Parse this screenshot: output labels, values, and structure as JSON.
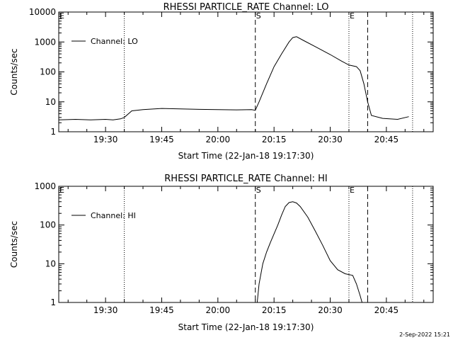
{
  "footer": {
    "timestamp": "2-Sep-2022 15:21"
  },
  "chart_data": [
    {
      "type": "line",
      "title": "RHESSI PARTICLE_RATE Channel: LO",
      "xlabel": "Start Time (22-Jan-18 19:17:30)",
      "ylabel": "Counts/sec",
      "y_scale": "log",
      "ylim": [
        1,
        10000
      ],
      "xlim": [
        "19:17:30",
        "20:57:30"
      ],
      "xticks": [
        "19:30",
        "19:45",
        "20:00",
        "20:15",
        "20:30",
        "20:45"
      ],
      "yticks": [
        "1",
        "10",
        "100",
        "1000",
        "10000"
      ],
      "legend": {
        "label": "Channel: LO",
        "placement": "top-left"
      },
      "markers": [
        {
          "label": "E",
          "time": "19:17:30",
          "style": "dotted"
        },
        {
          "label": "",
          "time": "19:35:00",
          "style": "dotted"
        },
        {
          "label": "S",
          "time": "20:10:00",
          "style": "dashed"
        },
        {
          "label": "E",
          "time": "20:35:00",
          "style": "dotted"
        },
        {
          "label": "",
          "time": "20:40:00",
          "style": "dashed"
        },
        {
          "label": "",
          "time": "20:52:00",
          "style": "dotted"
        }
      ],
      "series": [
        {
          "name": "Channel: LO",
          "x": [
            "19:17:30",
            "19:22:00",
            "19:26:00",
            "19:30:00",
            "19:32:00",
            "19:34:00",
            "19:35:00",
            "19:37:00",
            "19:40:00",
            "19:45:00",
            "19:50:00",
            "19:55:00",
            "20:00:00",
            "20:05:00",
            "20:09:00",
            "20:10:00",
            "20:11:00",
            "20:13:00",
            "20:15:00",
            "20:17:00",
            "20:19:00",
            "20:20:00",
            "20:21:00",
            "20:23:00",
            "20:26:00",
            "20:30:00",
            "20:33:00",
            "20:35:00",
            "20:37:00",
            "20:38:00",
            "20:39:00",
            "20:40:00",
            "20:41:00",
            "20:44:00",
            "20:48:00",
            "20:51:00"
          ],
          "values": [
            2.5,
            2.6,
            2.5,
            2.6,
            2.5,
            2.7,
            3.0,
            5.0,
            5.5,
            6.0,
            5.8,
            5.6,
            5.5,
            5.4,
            5.5,
            5.2,
            10,
            40,
            150,
            400,
            1000,
            1400,
            1500,
            1100,
            700,
            380,
            230,
            170,
            150,
            110,
            40,
            10,
            3.5,
            2.8,
            2.6,
            3.2
          ]
        }
      ]
    },
    {
      "type": "line",
      "title": "RHESSI PARTICLE_RATE Channel: HI",
      "xlabel": "Start Time (22-Jan-18 19:17:30)",
      "ylabel": "Counts/sec",
      "y_scale": "log",
      "ylim": [
        1,
        1000
      ],
      "xlim": [
        "19:17:30",
        "20:57:30"
      ],
      "xticks": [
        "19:30",
        "19:45",
        "20:00",
        "20:15",
        "20:30",
        "20:45"
      ],
      "yticks": [
        "1",
        "10",
        "100",
        "1000"
      ],
      "legend": {
        "label": "Channel: HI",
        "placement": "top-left"
      },
      "markers": [
        {
          "label": "E",
          "time": "19:17:30",
          "style": "dotted"
        },
        {
          "label": "",
          "time": "19:35:00",
          "style": "dotted"
        },
        {
          "label": "S",
          "time": "20:10:00",
          "style": "dashed"
        },
        {
          "label": "E",
          "time": "20:35:00",
          "style": "dotted"
        },
        {
          "label": "",
          "time": "20:40:00",
          "style": "dashed"
        },
        {
          "label": "",
          "time": "20:52:00",
          "style": "dotted"
        }
      ],
      "series": [
        {
          "name": "Channel: HI",
          "x": [
            "20:10:30",
            "20:11:00",
            "20:12:00",
            "20:13:00",
            "20:14:00",
            "20:16:00",
            "20:17:00",
            "20:18:00",
            "20:19:00",
            "20:20:00",
            "20:21:00",
            "20:22:00",
            "20:24:00",
            "20:26:00",
            "20:28:00",
            "20:30:00",
            "20:32:00",
            "20:34:00",
            "20:36:00",
            "20:37:00",
            "20:38:00",
            "20:38:30"
          ],
          "values": [
            1,
            3,
            10,
            20,
            35,
            100,
            180,
            300,
            380,
            400,
            370,
            300,
            160,
            70,
            30,
            12,
            7,
            5.5,
            5,
            3,
            1.5,
            1
          ]
        }
      ]
    }
  ]
}
